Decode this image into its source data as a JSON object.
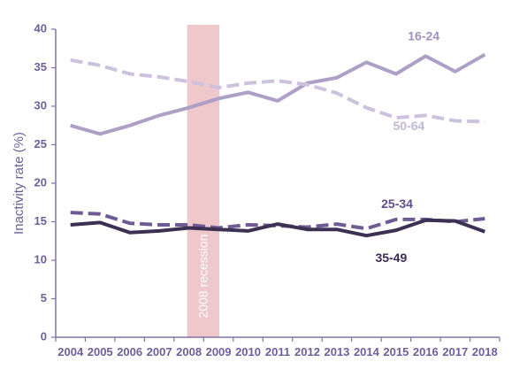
{
  "chart_data": {
    "type": "line",
    "title": "",
    "xlabel": "",
    "ylabel": "Inactivity rate (%)",
    "ylim": [
      0,
      40
    ],
    "yticks": [
      "0",
      "5",
      "10",
      "15",
      "20",
      "25",
      "30",
      "35",
      "40"
    ],
    "categories": [
      "2004",
      "2005",
      "2006",
      "2007",
      "2008",
      "2009",
      "2010",
      "2011",
      "2012",
      "2013",
      "2014",
      "2015",
      "2016",
      "2017",
      "2018"
    ],
    "grid": false,
    "series": [
      {
        "name": "16-24",
        "style": "solid",
        "color": "#ae9fc7",
        "label_color": "#a18fbf",
        "values": [
          27.5,
          26.4,
          27.5,
          28.8,
          29.8,
          31.0,
          31.8,
          30.7,
          33.0,
          33.7,
          35.7,
          34.2,
          36.5,
          34.5,
          36.7
        ]
      },
      {
        "name": "50-64",
        "style": "dashed",
        "color": "#cdc2dd",
        "label_color": "#c4b8d8",
        "values": [
          36.0,
          35.3,
          34.2,
          33.8,
          33.2,
          32.4,
          33.0,
          33.3,
          32.8,
          31.7,
          29.8,
          28.5,
          28.8,
          28.1,
          28.0
        ]
      },
      {
        "name": "25-34",
        "style": "dashed",
        "color": "#6e5b94",
        "label_color": "#5f4c8a",
        "values": [
          16.2,
          16.0,
          14.8,
          14.6,
          14.6,
          14.2,
          14.6,
          14.5,
          14.3,
          14.7,
          14.1,
          15.3,
          15.3,
          15.0,
          15.4
        ]
      },
      {
        "name": "35-49",
        "style": "solid",
        "color": "#3d3153",
        "label_color": "#3a2d52",
        "values": [
          14.6,
          14.9,
          13.6,
          13.8,
          14.2,
          14.0,
          13.8,
          14.7,
          14.0,
          14.0,
          13.2,
          13.9,
          15.2,
          15.1,
          13.7
        ]
      }
    ],
    "annotation": {
      "text": "2008 recession",
      "from": "2008",
      "to": "2009",
      "color": "#eec8cb",
      "text_color": "#ffffff"
    },
    "axis_color": "#8073a8",
    "tick_color": "#6d5f9c"
  }
}
